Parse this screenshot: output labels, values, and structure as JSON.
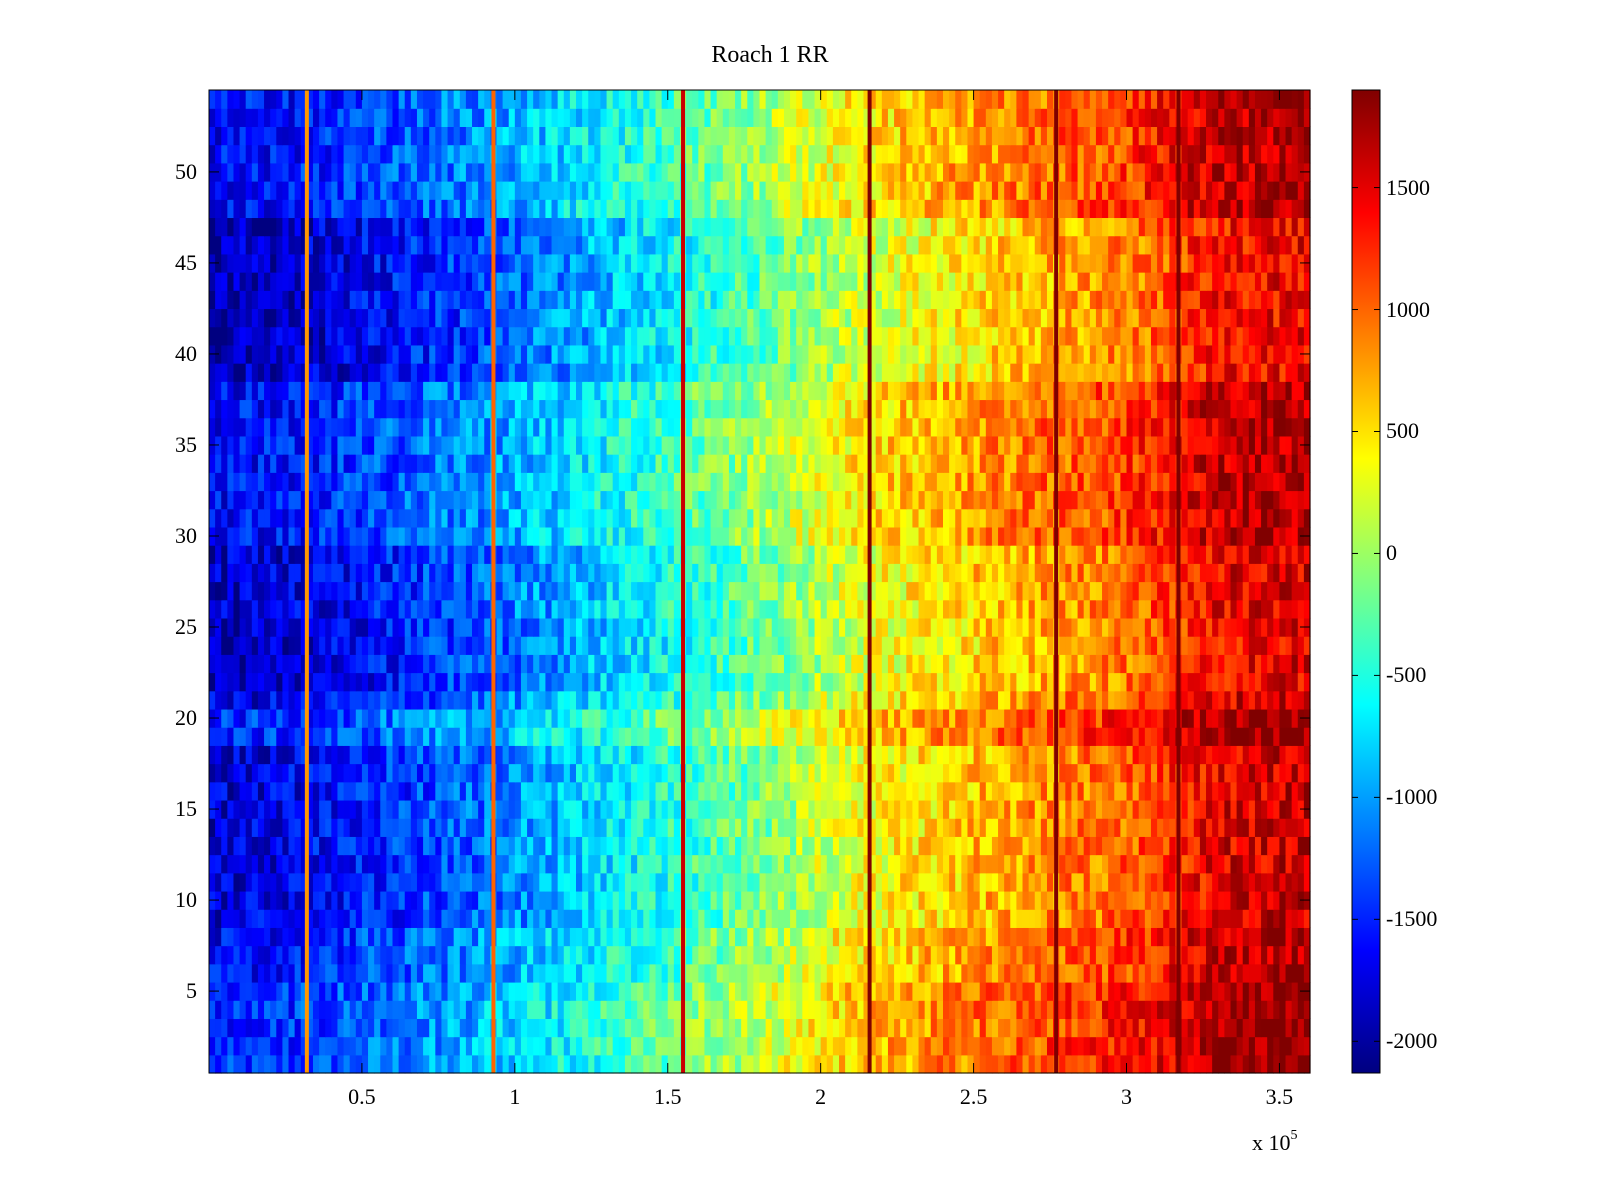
{
  "chart_data": {
    "type": "heatmap",
    "title": "Roach 1 RR",
    "xlabel": "",
    "ylabel": "",
    "x_range": [
      0,
      360000
    ],
    "y_range": [
      0.5,
      54.5
    ],
    "x_ticks": [
      50000,
      100000,
      150000,
      200000,
      250000,
      300000,
      350000
    ],
    "x_tick_labels": [
      "0.5",
      "1",
      "1.5",
      "2",
      "2.5",
      "3",
      "3.5"
    ],
    "x_multiplier_label": "x 10",
    "x_multiplier_exponent": "5",
    "y_ticks": [
      5,
      10,
      15,
      20,
      25,
      30,
      35,
      40,
      45,
      50
    ],
    "y_tick_labels": [
      "5",
      "10",
      "15",
      "20",
      "25",
      "30",
      "35",
      "40",
      "45",
      "50"
    ],
    "rows": 54,
    "colormap": "jet",
    "color_range": [
      -2130,
      1900
    ],
    "colorbar_ticks": [
      -2000,
      -1500,
      -1000,
      -500,
      0,
      500,
      1000,
      1500
    ],
    "colorbar_tick_labels": [
      "-2000",
      "-1500",
      "-1000",
      "-500",
      "0",
      "500",
      "1000",
      "1500"
    ],
    "value_trend": {
      "x": [
        0,
        30000,
        60000,
        90000,
        120000,
        150000,
        180000,
        210000,
        240000,
        270000,
        300000,
        330000,
        360000
      ],
      "value": [
        -1650,
        -1550,
        -1300,
        -1050,
        -700,
        -350,
        0,
        450,
        700,
        950,
        1150,
        1650,
        1750
      ]
    },
    "vertical_streaks": [
      {
        "x": 32000,
        "value": 800
      },
      {
        "x": 93000,
        "value": 1000
      },
      {
        "x": 155000,
        "value": 1600
      },
      {
        "x": 216000,
        "value": 1900
      },
      {
        "x": 277000,
        "value": 1900
      },
      {
        "x": 317000,
        "value": 1900
      }
    ],
    "dark_row_bands": [
      {
        "rows": [
          39,
          47
        ],
        "offset": -300
      },
      {
        "rows": [
          21,
          25
        ],
        "offset": -250
      },
      {
        "rows": [
          26,
          29
        ],
        "offset": -200
      },
      {
        "rows": [
          9,
          18
        ],
        "offset": -150
      },
      {
        "rows": [
          1,
          5
        ],
        "offset": 150
      },
      {
        "rows": [
          19,
          21
        ],
        "offset": 120
      }
    ],
    "grid": false,
    "colorbar": "right"
  }
}
